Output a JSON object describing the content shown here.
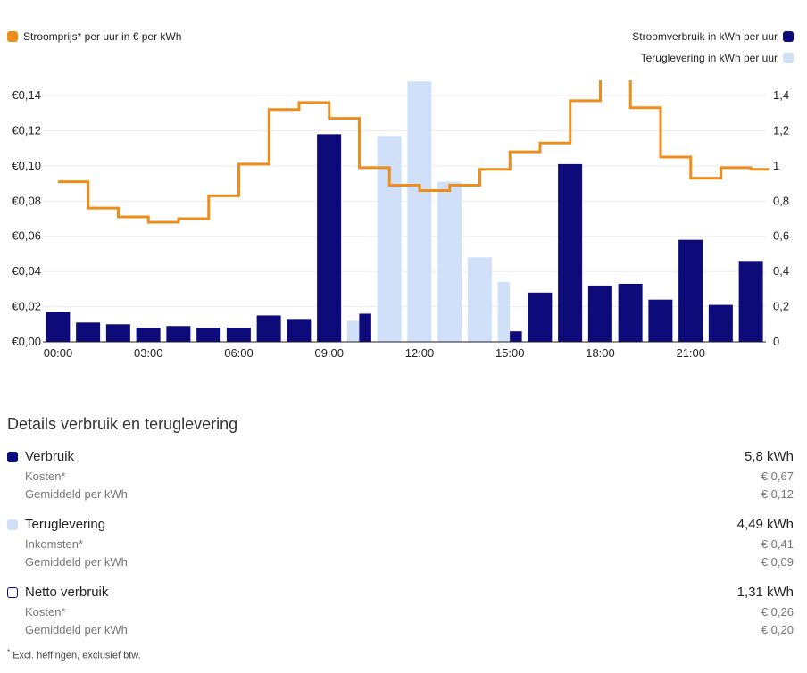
{
  "legend": {
    "price": "Stroomprijs* per uur in € per kWh",
    "usage": "Stroomverbruik in kWh per uur",
    "return": "Teruglevering in kWh per uur"
  },
  "colors": {
    "usage": "#0d0b7a",
    "return": "#cfe0f8",
    "price": "#ee8d1c",
    "grid": "#ececec"
  },
  "chart_data": {
    "type": "bar",
    "x_tick_labels": [
      "00:00",
      "03:00",
      "06:00",
      "09:00",
      "12:00",
      "15:00",
      "18:00",
      "21:00"
    ],
    "y_left": {
      "ticks": [
        "€0,00",
        "€0,02",
        "€0,04",
        "€0,06",
        "€0,08",
        "€0,10",
        "€0,12",
        "€0,14"
      ],
      "range": [
        0,
        0.14
      ]
    },
    "y_right": {
      "ticks": [
        "0",
        "0,2",
        "0,4",
        "0,6",
        "0,8",
        "1",
        "1,2",
        "1,4"
      ],
      "range": [
        0,
        1.4
      ]
    },
    "hours": [
      0,
      1,
      2,
      3,
      4,
      5,
      6,
      7,
      8,
      9,
      10,
      11,
      12,
      13,
      14,
      15,
      16,
      17,
      18,
      19,
      20,
      21,
      22,
      23
    ],
    "series": [
      {
        "name": "Stroomverbruik in kWh per uur",
        "axis": "right",
        "values": [
          0.17,
          0.11,
          0.1,
          0.08,
          0.09,
          0.08,
          0.08,
          0.15,
          0.13,
          1.18,
          0.16,
          0,
          0,
          0,
          0,
          0.06,
          0.28,
          1.01,
          0.32,
          0.33,
          0.24,
          0.58,
          0.21,
          0.46
        ]
      },
      {
        "name": "Teruglevering in kWh per uur",
        "axis": "right",
        "values": [
          0,
          0,
          0,
          0,
          0,
          0,
          0,
          0,
          0,
          0,
          0.12,
          1.17,
          1.48,
          0.91,
          0.48,
          0.34,
          0,
          0,
          0,
          0,
          0,
          0,
          0,
          0
        ]
      },
      {
        "name": "Stroomprijs* per uur in € per kWh",
        "axis": "left",
        "values": [
          0.091,
          0.076,
          0.071,
          0.068,
          0.07,
          0.083,
          0.101,
          0.132,
          0.136,
          0.127,
          0.099,
          0.089,
          0.086,
          0.089,
          0.098,
          0.108,
          0.113,
          0.137,
          0.15,
          0.133,
          0.105,
          0.093,
          0.099,
          0.098
        ]
      }
    ]
  },
  "details": {
    "title": "Details verbruik en teruglevering",
    "usage": {
      "label": "Verbruik",
      "value": "5,8 kWh",
      "sub1_label": "Kosten*",
      "sub1_value": "€ 0,67",
      "sub2_label": "Gemiddeld per kWh",
      "sub2_value": "€ 0,12"
    },
    "return": {
      "label": "Teruglevering",
      "value": "4,49 kWh",
      "sub1_label": "Inkomsten*",
      "sub1_value": "€ 0,41",
      "sub2_label": "Gemiddeld per kWh",
      "sub2_value": "€ 0,09"
    },
    "net": {
      "label": "Netto verbruik",
      "value": "1,31 kWh",
      "sub1_label": "Kosten*",
      "sub1_value": "€ 0,26",
      "sub2_label": "Gemiddeld per kWh",
      "sub2_value": "€ 0,20"
    }
  },
  "footnote": "Excl. heffingen, exclusief btw.",
  "footnote_mark": "*"
}
